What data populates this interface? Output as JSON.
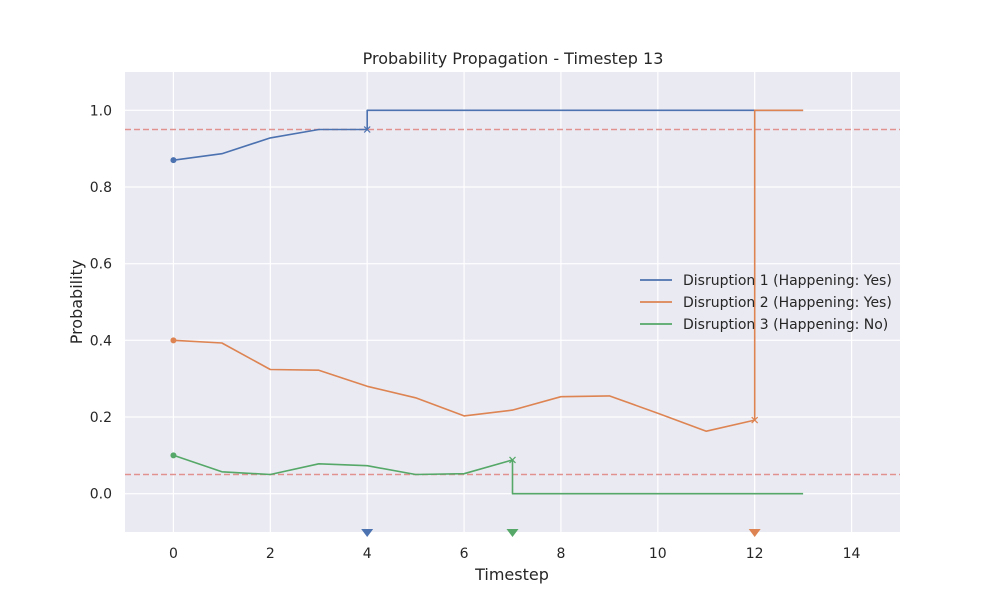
{
  "chart_data": {
    "type": "line",
    "title": "Probability Propagation - Timestep 13",
    "xlabel": "Timestep",
    "ylabel": "Probability",
    "xlim": [
      -1,
      15
    ],
    "ylim": [
      -0.1,
      1.1
    ],
    "xticks": [
      0,
      2,
      4,
      6,
      8,
      10,
      12,
      14
    ],
    "yticks": [
      0.0,
      0.2,
      0.4,
      0.6,
      0.8,
      1.0
    ],
    "xtick_labels": [
      "0",
      "2",
      "4",
      "6",
      "8",
      "10",
      "12",
      "14"
    ],
    "ytick_labels": [
      "0.0",
      "0.2",
      "0.4",
      "0.6",
      "0.8",
      "1.0"
    ],
    "grid": true,
    "background": "#eaeaf2",
    "legend_position": "center-right",
    "thresholds": [
      {
        "y": 0.95,
        "color": "#dd8452"
      },
      {
        "y": 0.05,
        "color": "#dd8452"
      }
    ],
    "series": [
      {
        "name": "Disruption 1 (Happening: Yes)",
        "color": "#4c72b0",
        "points": [
          [
            0,
            0.87
          ],
          [
            1,
            0.887
          ],
          [
            2,
            0.928
          ],
          [
            3,
            0.95
          ],
          [
            4,
            0.95
          ],
          [
            4,
            1.0
          ],
          [
            12,
            1.0
          ],
          [
            13,
            1.0
          ]
        ],
        "start": [
          0,
          0.87
        ],
        "cross": [
          4,
          0.95
        ],
        "event_x": 4
      },
      {
        "name": "Disruption 2 (Happening: Yes)",
        "color": "#dd8452",
        "points": [
          [
            0,
            0.4
          ],
          [
            1,
            0.393
          ],
          [
            2,
            0.324
          ],
          [
            3,
            0.322
          ],
          [
            4,
            0.28
          ],
          [
            5,
            0.25
          ],
          [
            6,
            0.203
          ],
          [
            7,
            0.218
          ],
          [
            8,
            0.253
          ],
          [
            9,
            0.255
          ],
          [
            10,
            0.21
          ],
          [
            11,
            0.163
          ],
          [
            12,
            0.192
          ],
          [
            12,
            1.0
          ],
          [
            13,
            1.0
          ]
        ],
        "start": [
          0,
          0.4
        ],
        "cross": [
          12,
          0.192
        ],
        "event_x": 12
      },
      {
        "name": "Disruption 3 (Happening: No)",
        "color": "#55a868",
        "points": [
          [
            0,
            0.1
          ],
          [
            1,
            0.057
          ],
          [
            2,
            0.05
          ],
          [
            3,
            0.078
          ],
          [
            4,
            0.073
          ],
          [
            5,
            0.05
          ],
          [
            6,
            0.052
          ],
          [
            7,
            0.088
          ],
          [
            7,
            0.0
          ],
          [
            13,
            0.0
          ]
        ],
        "start": [
          0,
          0.1
        ],
        "cross": [
          7,
          0.088
        ],
        "event_x": 7
      }
    ]
  }
}
